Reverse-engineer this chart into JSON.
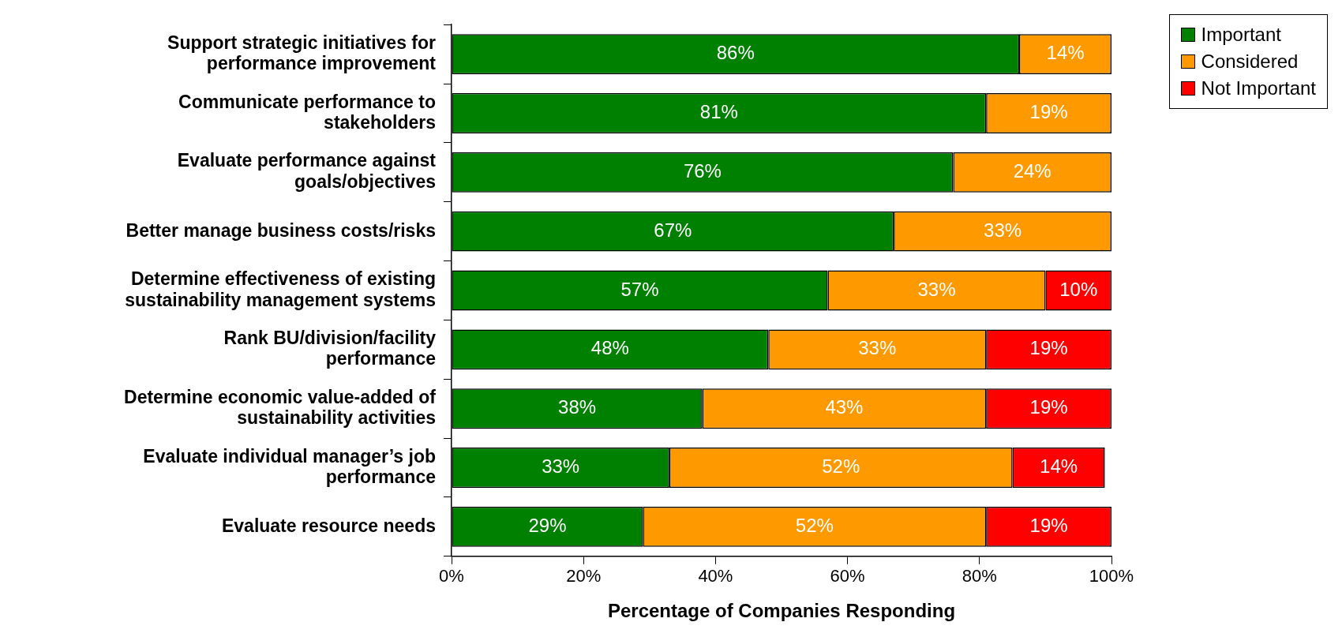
{
  "chart_data": {
    "type": "bar",
    "orientation": "horizontal",
    "stacked": true,
    "xlabel": "Percentage of Companies Responding",
    "categories": [
      "Support strategic initiatives for performance improvement",
      "Communicate performance to stakeholders",
      "Evaluate performance against goals/objectives",
      "Better manage business costs/risks",
      "Determine effectiveness of existing sustainability management systems",
      "Rank BU/division/facility performance",
      "Determine economic value-added of sustainability activities",
      "Evaluate individual manager’s job performance",
      "Evaluate resource needs"
    ],
    "series": [
      {
        "name": "Important",
        "color": "#008000",
        "values": [
          86,
          81,
          76,
          67,
          57,
          48,
          38,
          33,
          29
        ],
        "value_labels": [
          "86%",
          "81%",
          "76%",
          "67%",
          "57%",
          "48%",
          "38%",
          "33%",
          "29%"
        ]
      },
      {
        "name": "Considered",
        "color": "#ff9900",
        "values": [
          14,
          19,
          24,
          33,
          33,
          33,
          43,
          52,
          52
        ],
        "value_labels": [
          "14%",
          "19%",
          "24%",
          "33%",
          "33%",
          "33%",
          "43%",
          "52%",
          "52%"
        ]
      },
      {
        "name": "Not Important",
        "color": "#ff0000",
        "values": [
          null,
          null,
          null,
          null,
          10,
          19,
          19,
          14,
          19
        ],
        "value_labels": [
          null,
          null,
          null,
          null,
          "10%",
          "19%",
          "19%",
          "14%",
          "19%"
        ]
      }
    ],
    "xlim": [
      0,
      100
    ],
    "xticks": [
      {
        "value": 0,
        "label": "0%"
      },
      {
        "value": 20,
        "label": "20%"
      },
      {
        "value": 40,
        "label": "40%"
      },
      {
        "value": 60,
        "label": "60%"
      },
      {
        "value": 80,
        "label": "80%"
      },
      {
        "value": 100,
        "label": "100%"
      }
    ],
    "legend": "top right"
  }
}
